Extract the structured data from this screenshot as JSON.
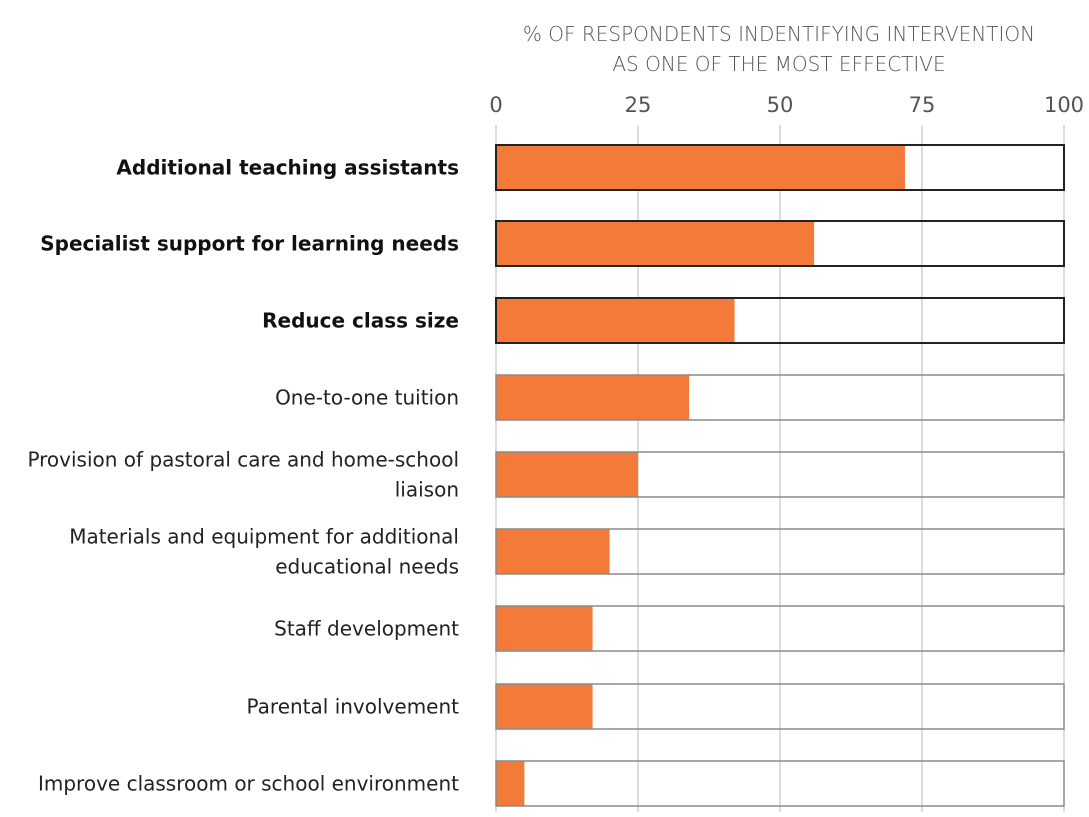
{
  "chart_data": {
    "type": "bar",
    "orientation": "horizontal",
    "title": "",
    "xlabel_lines": [
      "% OF RESPONDENTS INDENTIFYING INTERVENTION",
      "AS ONE OF THE MOST EFFECTIVE"
    ],
    "xlim": [
      0,
      100
    ],
    "ticks": [
      0,
      25,
      50,
      75,
      100
    ],
    "grid": true,
    "categories": [
      {
        "label_lines": [
          "Additional teaching assistants"
        ],
        "value": 72,
        "highlight": true
      },
      {
        "label_lines": [
          "Specialist support for learning needs"
        ],
        "value": 56,
        "highlight": true
      },
      {
        "label_lines": [
          "Reduce class size"
        ],
        "value": 42,
        "highlight": true
      },
      {
        "label_lines": [
          "One-to-one tuition"
        ],
        "value": 34,
        "highlight": false
      },
      {
        "label_lines": [
          "Provision of pastoral care and home-school",
          "liaison"
        ],
        "value": 25,
        "highlight": false
      },
      {
        "label_lines": [
          "Materials and equipment for additional",
          "educational needs"
        ],
        "value": 20,
        "highlight": false
      },
      {
        "label_lines": [
          "Staff development"
        ],
        "value": 17,
        "highlight": false
      },
      {
        "label_lines": [
          "Parental involvement"
        ],
        "value": 17,
        "highlight": false
      },
      {
        "label_lines": [
          "Improve classroom or school environment"
        ],
        "value": 5,
        "highlight": false
      }
    ],
    "colors": {
      "bar": "#f37a38",
      "outline_highlight": "#222222",
      "outline_normal": "#8a8a8a",
      "grid": "#b8b8b8"
    }
  }
}
